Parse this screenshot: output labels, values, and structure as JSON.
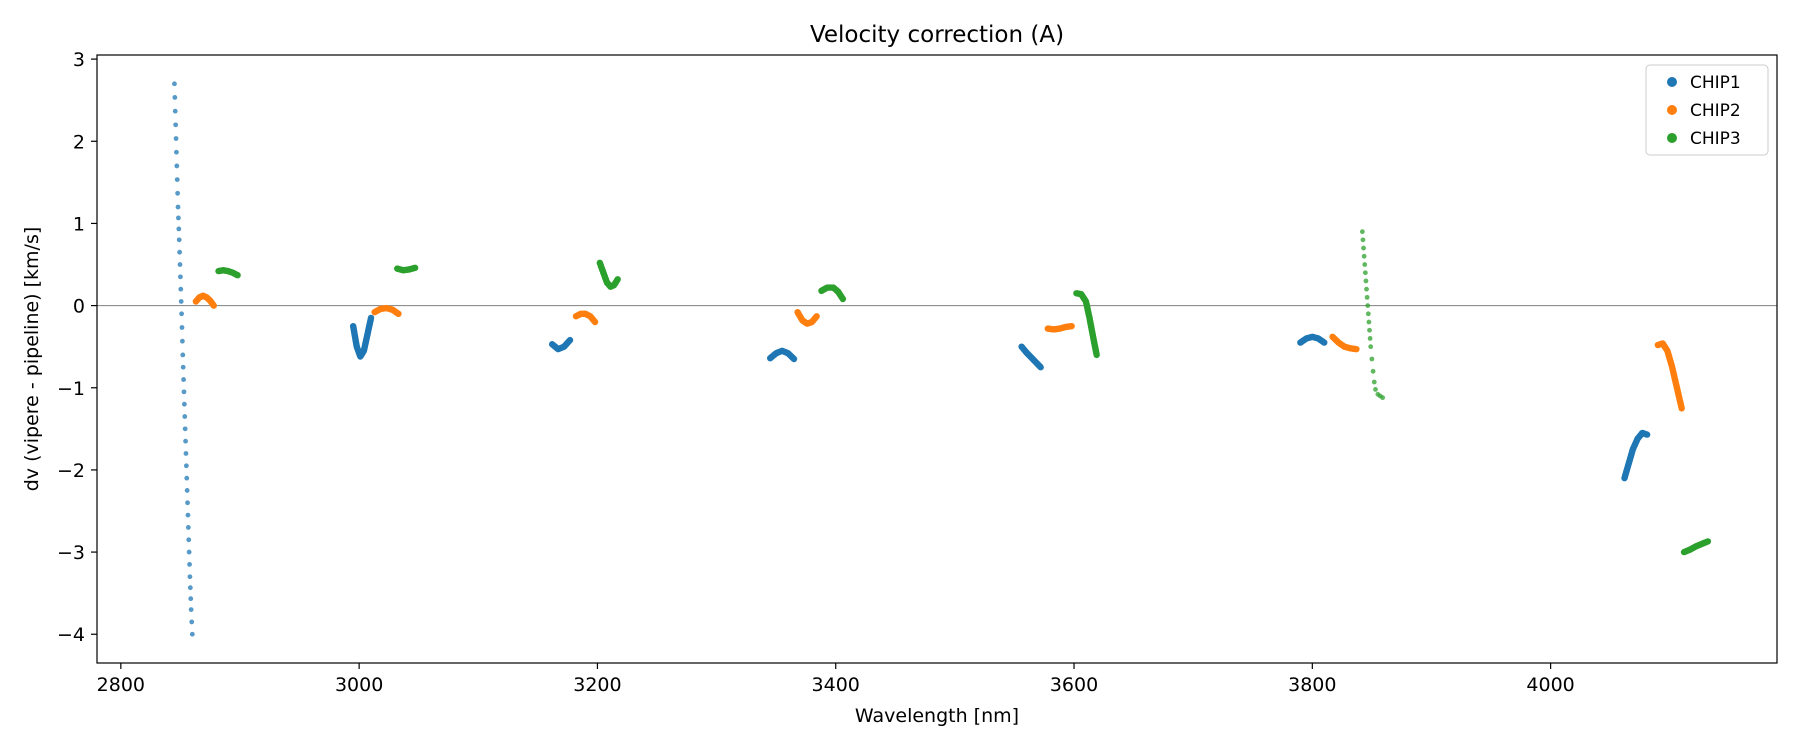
{
  "chart_data": {
    "type": "scatter",
    "title": "Velocity correction (A)",
    "xlabel": "Wavelength [nm]",
    "ylabel": "dv (vipere - pipeline) [km/s]",
    "xlim": [
      2780,
      4190
    ],
    "ylim": [
      -4.35,
      3.05
    ],
    "xticks": [
      2800,
      3000,
      3200,
      3400,
      3600,
      3800,
      4000
    ],
    "xtick_labels": [
      "2800",
      "3000",
      "3200",
      "3400",
      "3600",
      "3800",
      "4000"
    ],
    "yticks": [
      3,
      2,
      1,
      0,
      -1,
      -2,
      -3,
      -4
    ],
    "ytick_labels": [
      "3",
      "2",
      "1",
      "0",
      "−1",
      "−2",
      "−3",
      "−4"
    ],
    "reference_line": {
      "y": 0,
      "color": "#808080"
    },
    "legend_position": "top-right",
    "series": [
      {
        "name": "CHIP1",
        "color": "#1f77b4",
        "segments": [
          {
            "x": [
              2845,
              2846,
              2847,
              2848,
              2849,
              2850,
              2851,
              2852,
              2853,
              2854,
              2855,
              2856,
              2857,
              2858,
              2859,
              2860
            ],
            "y": [
              2.7,
              2.2,
              1.7,
              1.2,
              0.8,
              0.35,
              -0.1,
              -0.6,
              -1.05,
              -1.5,
              -1.95,
              -2.4,
              -2.85,
              -3.3,
              -3.7,
              -4.0
            ],
            "sparse": true
          },
          {
            "x": [
              2995,
              2998,
              3001,
              3004,
              3007,
              3010
            ],
            "y": [
              -0.25,
              -0.5,
              -0.62,
              -0.55,
              -0.35,
              -0.15
            ]
          },
          {
            "x": [
              3162,
              3167,
              3172,
              3177
            ],
            "y": [
              -0.47,
              -0.53,
              -0.5,
              -0.42
            ]
          },
          {
            "x": [
              3345,
              3350,
              3355,
              3360,
              3365
            ],
            "y": [
              -0.64,
              -0.58,
              -0.55,
              -0.58,
              -0.65
            ]
          },
          {
            "x": [
              3556,
              3560,
              3564,
              3568,
              3572
            ],
            "y": [
              -0.5,
              -0.57,
              -0.63,
              -0.69,
              -0.75
            ]
          },
          {
            "x": [
              3790,
              3795,
              3800,
              3805,
              3810
            ],
            "y": [
              -0.45,
              -0.4,
              -0.38,
              -0.4,
              -0.45
            ]
          },
          {
            "x": [
              4062,
              4065,
              4069,
              4073,
              4077,
              4081
            ],
            "y": [
              -2.1,
              -1.95,
              -1.75,
              -1.62,
              -1.55,
              -1.57
            ]
          }
        ]
      },
      {
        "name": "CHIP2",
        "color": "#ff7f0e",
        "segments": [
          {
            "x": [
              2863,
              2866,
              2869,
              2872,
              2875,
              2878
            ],
            "y": [
              0.05,
              0.1,
              0.12,
              0.1,
              0.06,
              0.0
            ]
          },
          {
            "x": [
              3013,
              3018,
              3023,
              3028,
              3033
            ],
            "y": [
              -0.08,
              -0.04,
              -0.03,
              -0.05,
              -0.1
            ]
          },
          {
            "x": [
              3182,
              3186,
              3190,
              3194,
              3198
            ],
            "y": [
              -0.13,
              -0.1,
              -0.1,
              -0.13,
              -0.2
            ]
          },
          {
            "x": [
              3368,
              3372,
              3376,
              3380,
              3384
            ],
            "y": [
              -0.08,
              -0.18,
              -0.22,
              -0.2,
              -0.13
            ]
          },
          {
            "x": [
              3578,
              3583,
              3588,
              3593,
              3598
            ],
            "y": [
              -0.28,
              -0.29,
              -0.28,
              -0.26,
              -0.25
            ]
          },
          {
            "x": [
              3817,
              3822,
              3827,
              3832,
              3837
            ],
            "y": [
              -0.38,
              -0.45,
              -0.5,
              -0.52,
              -0.53
            ]
          },
          {
            "x": [
              4090,
              4094,
              4098,
              4102,
              4106,
              4110
            ],
            "y": [
              -0.48,
              -0.46,
              -0.55,
              -0.75,
              -1.0,
              -1.25
            ]
          }
        ]
      },
      {
        "name": "CHIP3",
        "color": "#2ca02c",
        "segments": [
          {
            "x": [
              2882,
              2886,
              2890,
              2894,
              2898
            ],
            "y": [
              0.42,
              0.43,
              0.42,
              0.4,
              0.37
            ]
          },
          {
            "x": [
              3032,
              3037,
              3042,
              3047
            ],
            "y": [
              0.45,
              0.43,
              0.44,
              0.46
            ]
          },
          {
            "x": [
              3202,
              3205,
              3208,
              3211,
              3214,
              3217
            ],
            "y": [
              0.52,
              0.4,
              0.28,
              0.23,
              0.25,
              0.32
            ]
          },
          {
            "x": [
              3388,
              3393,
              3398,
              3402,
              3406
            ],
            "y": [
              0.18,
              0.22,
              0.22,
              0.17,
              0.08
            ]
          },
          {
            "x": [
              3602,
              3606,
              3610,
              3613,
              3616,
              3619
            ],
            "y": [
              0.15,
              0.14,
              0.05,
              -0.15,
              -0.38,
              -0.6
            ]
          },
          {
            "x": [
              3842,
              3843,
              3844,
              3845,
              3846,
              3847,
              3848,
              3849,
              3850,
              3851,
              3852,
              3853,
              3855,
              3857,
              3859
            ],
            "y": [
              0.9,
              0.7,
              0.5,
              0.3,
              0.1,
              -0.1,
              -0.3,
              -0.5,
              -0.65,
              -0.8,
              -0.93,
              -1.02,
              -1.08,
              -1.1,
              -1.12
            ],
            "sparse": true
          },
          {
            "x": [
              4112,
              4117,
              4122,
              4127,
              4132
            ],
            "y": [
              -3.0,
              -2.97,
              -2.93,
              -2.9,
              -2.87
            ]
          }
        ]
      }
    ]
  }
}
